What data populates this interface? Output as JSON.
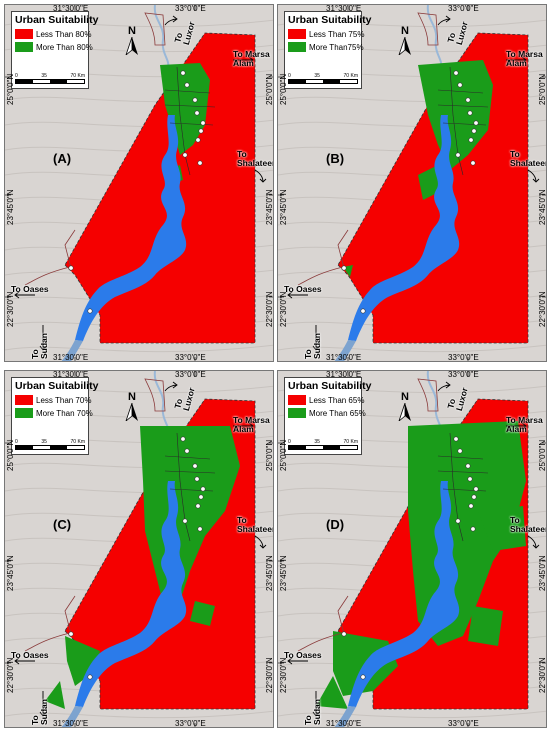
{
  "legend_title": "Urban Suitability",
  "colors": {
    "unsuitable": "#f50000",
    "suitable": "#1a9c1a",
    "lake": "#2b7bea",
    "background": "#d9d5d2"
  },
  "north_label": "N",
  "scale": {
    "zero": "0",
    "mid": "35",
    "max": "70 Km"
  },
  "top_coords": {
    "left": "31°30'0\"E",
    "right": "33°0'0\"E"
  },
  "side_coords": {
    "upper": "25°0'0\"N",
    "middle": "23°45'0\"N",
    "lower": "22°30'0\"N"
  },
  "destinations": {
    "luxor": "To Luxor",
    "marsa_alam": "To Marsa Alam",
    "shalateen": "To Shalateen",
    "oases": "To Oases",
    "sudan": "To Sudan"
  },
  "panels": [
    {
      "id": "A",
      "label": "(A)",
      "legend_low": "Less Than 80%",
      "legend_high": "More Than 80%",
      "green_level": 1
    },
    {
      "id": "B",
      "label": "(B)",
      "legend_low": "Less Than 75%",
      "legend_high": "More Than75%",
      "green_level": 2
    },
    {
      "id": "C",
      "label": "(C)",
      "legend_low": "Less Than 70%",
      "legend_high": "More Than 70%",
      "green_level": 3
    },
    {
      "id": "D",
      "label": "(D)",
      "legend_low": "Less Than 65%",
      "legend_high": "More Than 65%",
      "green_level": 4
    }
  ]
}
